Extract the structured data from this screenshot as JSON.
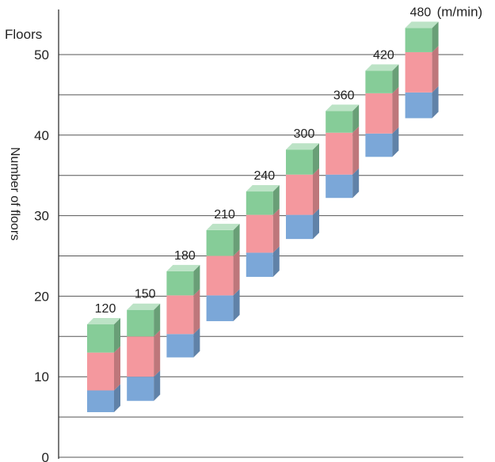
{
  "chart_data": {
    "type": "bar",
    "subtype": "floating-stacked-3d",
    "unit_label": "Floors",
    "ylabel": "Number of floors",
    "speed_unit": "(m/min)",
    "ylim": [
      0,
      55
    ],
    "yticks": [
      0,
      10,
      20,
      30,
      40,
      50
    ],
    "grid_lines": [
      5,
      10,
      15,
      20,
      25,
      30,
      35,
      40,
      45,
      50
    ],
    "grid": true,
    "categories": [
      "120",
      "150",
      "180",
      "210",
      "240",
      "300",
      "360",
      "420",
      "480"
    ],
    "segment_colors": {
      "lower": "#7ba7d8",
      "middle": "#f4989e",
      "upper": "#86cc98"
    },
    "series": [
      {
        "values_low": [
          5.6,
          7.0,
          12.4,
          16.9,
          22.4,
          27.1,
          32.2,
          37.3,
          42.1
        ]
      },
      {
        "values_low": [
          8.3,
          10.0,
          15.3,
          20.1,
          25.4,
          30.1,
          35.1,
          40.2,
          45.3
        ]
      },
      {
        "values_low": [
          13.0,
          15.0,
          20.1,
          25.0,
          30.1,
          35.1,
          40.3,
          45.2,
          50.3
        ]
      },
      {
        "values_top": [
          16.5,
          18.3,
          23.1,
          28.2,
          33.0,
          38.2,
          43.0,
          48.0,
          53.3
        ]
      }
    ]
  }
}
